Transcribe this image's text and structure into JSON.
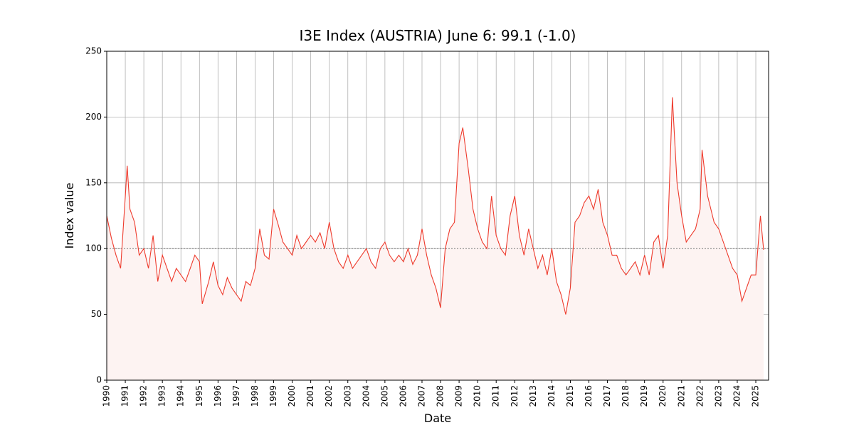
{
  "chart_data": {
    "type": "line",
    "title": "I3E Index (AUSTRIA) June 6: 99.1 (-1.0)",
    "xlabel": "Date",
    "ylabel": "Index value",
    "xlim": [
      1990,
      2025.69
    ],
    "ylim": [
      0,
      250
    ],
    "xticks": [
      1990,
      1991,
      1992,
      1993,
      1994,
      1995,
      1996,
      1997,
      1998,
      1999,
      2000,
      2001,
      2002,
      2003,
      2004,
      2005,
      2006,
      2007,
      2008,
      2009,
      2010,
      2011,
      2012,
      2013,
      2014,
      2015,
      2016,
      2017,
      2018,
      2019,
      2020,
      2021,
      2022,
      2023,
      2024,
      2025
    ],
    "yticks": [
      0,
      50,
      100,
      150,
      200,
      250
    ],
    "grid": true,
    "reference_line": 100,
    "series": [
      {
        "color": "#ee3a2c",
        "fill": "#fdf3f2",
        "x": [
          1990,
          1990.25,
          1990.5,
          1990.75,
          1991,
          1991.1,
          1991.25,
          1991.5,
          1991.75,
          1992,
          1992.25,
          1992.5,
          1992.75,
          1993,
          1993.25,
          1993.5,
          1993.75,
          1994,
          1994.25,
          1994.5,
          1994.75,
          1995,
          1995.15,
          1995.5,
          1995.75,
          1996,
          1996.25,
          1996.5,
          1996.75,
          1997,
          1997.25,
          1997.5,
          1997.75,
          1998,
          1998.25,
          1998.5,
          1998.75,
          1999,
          1999.25,
          1999.5,
          1999.75,
          2000,
          2000.25,
          2000.5,
          2000.75,
          2001,
          2001.25,
          2001.5,
          2001.75,
          2002,
          2002.25,
          2002.5,
          2002.75,
          2003,
          2003.25,
          2003.5,
          2003.75,
          2004,
          2004.25,
          2004.5,
          2004.75,
          2005,
          2005.25,
          2005.5,
          2005.75,
          2006,
          2006.25,
          2006.5,
          2006.75,
          2007,
          2007.25,
          2007.5,
          2007.75,
          2008,
          2008.25,
          2008.5,
          2008.75,
          2009,
          2009.2,
          2009.5,
          2009.75,
          2010,
          2010.25,
          2010.5,
          2010.75,
          2011,
          2011.25,
          2011.5,
          2011.75,
          2012,
          2012.25,
          2012.5,
          2012.75,
          2013,
          2013.25,
          2013.5,
          2013.75,
          2014,
          2014.25,
          2014.5,
          2014.75,
          2015,
          2015.25,
          2015.5,
          2015.75,
          2016,
          2016.25,
          2016.5,
          2016.75,
          2017,
          2017.25,
          2017.5,
          2017.75,
          2018,
          2018.25,
          2018.5,
          2018.75,
          2019,
          2019.25,
          2019.5,
          2019.75,
          2020,
          2020.25,
          2020.5,
          2020.75,
          2021,
          2021.25,
          2021.5,
          2021.75,
          2022,
          2022.1,
          2022.4,
          2022.75,
          2023,
          2023.25,
          2023.5,
          2023.75,
          2024,
          2024.25,
          2024.5,
          2024.75,
          2025,
          2025.25,
          2025.42
        ],
        "values": [
          125,
          108,
          95,
          85,
          140,
          163,
          130,
          120,
          95,
          100,
          85,
          110,
          75,
          95,
          85,
          75,
          85,
          80,
          75,
          85,
          95,
          90,
          58,
          75,
          90,
          72,
          65,
          78,
          70,
          65,
          60,
          75,
          72,
          85,
          115,
          95,
          92,
          130,
          118,
          105,
          100,
          95,
          110,
          100,
          105,
          110,
          105,
          112,
          100,
          120,
          100,
          90,
          85,
          95,
          85,
          90,
          95,
          100,
          90,
          85,
          100,
          105,
          95,
          90,
          95,
          90,
          100,
          88,
          95,
          115,
          95,
          80,
          70,
          55,
          100,
          115,
          120,
          180,
          192,
          160,
          130,
          115,
          105,
          100,
          140,
          110,
          100,
          95,
          125,
          140,
          110,
          95,
          115,
          100,
          85,
          95,
          80,
          100,
          75,
          65,
          50,
          70,
          120,
          125,
          135,
          140,
          130,
          145,
          120,
          110,
          95,
          95,
          85,
          80,
          85,
          90,
          80,
          95,
          80,
          105,
          110,
          85,
          110,
          215,
          150,
          125,
          105,
          110,
          115,
          130,
          175,
          140,
          120,
          115,
          105,
          95,
          85,
          80,
          60,
          70,
          80,
          80,
          125,
          99.1
        ]
      }
    ]
  }
}
